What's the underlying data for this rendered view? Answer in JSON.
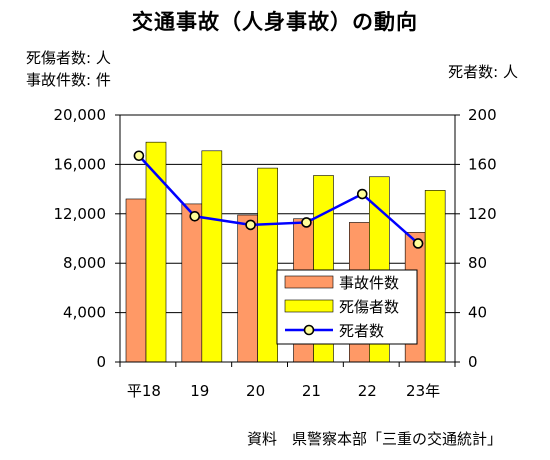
{
  "title": "交通事故（人身事故）の動向",
  "units": {
    "left_1": "死傷者数: 人",
    "left_2": "事故件数: 件",
    "right": "死者数: 人"
  },
  "source": "資料　県警察本部「三重の交通統計」",
  "colors": {
    "accidents": "#ff9966",
    "casualties": "#ffff00",
    "deaths": "#0000ff",
    "marker_fill": "#ffff99"
  },
  "chart_data": {
    "type": "bar",
    "categories": [
      "平18",
      "19",
      "20",
      "21",
      "22",
      "23年"
    ],
    "series": [
      {
        "name": "事故件数",
        "type": "bar",
        "axis": "left",
        "values": [
          13200,
          12800,
          11900,
          11600,
          11300,
          10500
        ]
      },
      {
        "name": "死傷者数",
        "type": "bar",
        "axis": "left",
        "values": [
          17800,
          17100,
          15700,
          15100,
          15000,
          13900
        ]
      },
      {
        "name": "死者数",
        "type": "line",
        "axis": "right",
        "values": [
          167,
          118,
          111,
          113,
          136,
          96
        ]
      }
    ],
    "y_left": {
      "min": 0,
      "max": 20000,
      "ticks": [
        "0",
        "4,000",
        "8,000",
        "12,000",
        "16,000",
        "20,000"
      ]
    },
    "y_right": {
      "min": 0,
      "max": 200,
      "ticks": [
        "0",
        "40",
        "80",
        "120",
        "160",
        "200"
      ]
    },
    "grid": true,
    "legend_position": "bottom-right"
  }
}
